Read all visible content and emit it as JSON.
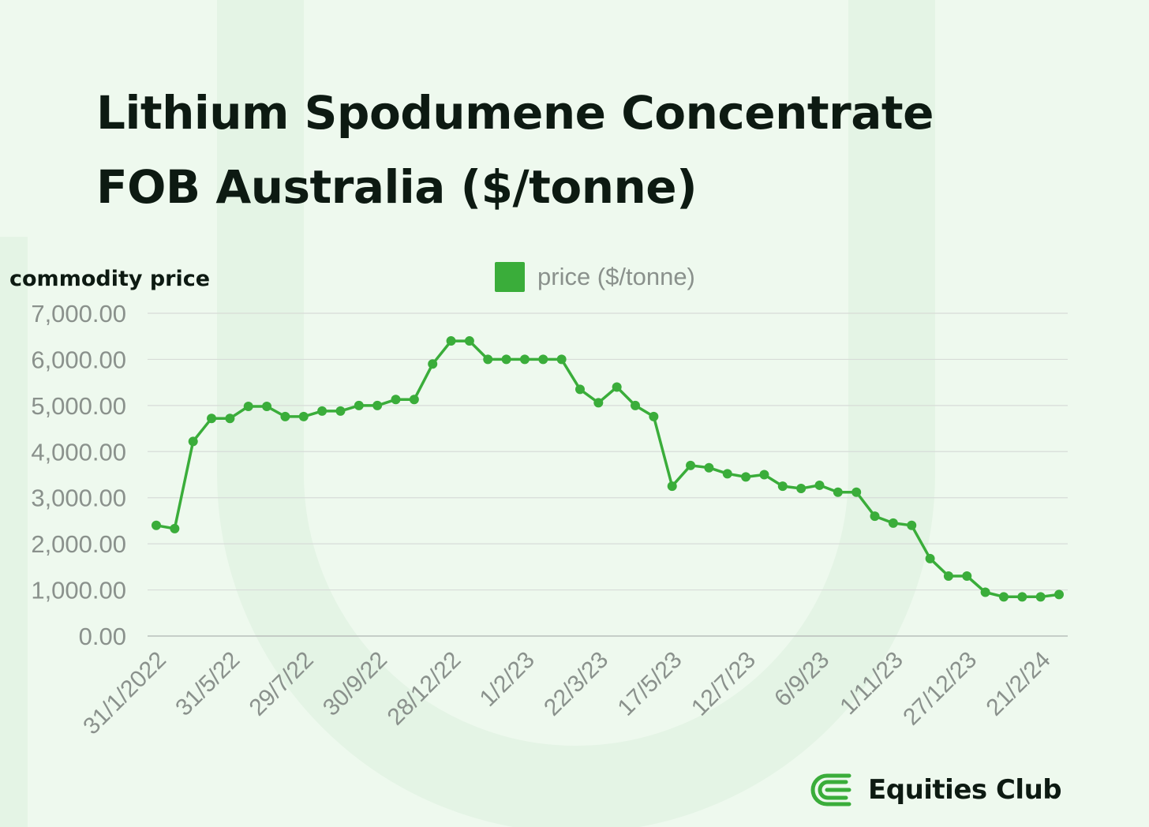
{
  "colors": {
    "background": "#eef9ee",
    "line": "#3aad3a",
    "grid": "#d7dcd8",
    "tick_text": "#8a918c",
    "title": "#0d1a12",
    "brand_green": "#3aad3a"
  },
  "brand": {
    "name": "Equities Club",
    "logo_icon": "equities-club-logo-icon"
  },
  "chart_data": {
    "type": "line",
    "title": "Lithium Spodumene Concentrate FOB Australia ($/tonne)",
    "title_lines": [
      "Lithium Spodumene Concentrate",
      "FOB Australia ($/tonne)"
    ],
    "ylabel": "commodity price",
    "xlabel": "",
    "ylim": [
      0,
      7000
    ],
    "yticks": [
      0,
      1000,
      2000,
      3000,
      4000,
      5000,
      6000,
      7000
    ],
    "ytick_labels": [
      "0.00",
      "1,000.00",
      "2,000.00",
      "3,000.00",
      "4,000.00",
      "5,000.00",
      "6,000.00",
      "7,000.00"
    ],
    "grid": true,
    "legend_position": "top-center",
    "xtick_labels": [
      "31/1/2022",
      "31/5/22",
      "29/7/22",
      "30/9/22",
      "28/12/22",
      "1/2/23",
      "22/3/23",
      "17/5/23",
      "12/7/23",
      "6/9/23",
      "1/11/23",
      "27/12/23",
      "21/2/24"
    ],
    "xtick_every": 4,
    "series": [
      {
        "name": "price ($/tonne)",
        "values": [
          2400,
          2330,
          4220,
          4720,
          4720,
          4980,
          4980,
          4760,
          4760,
          4880,
          4880,
          5000,
          5000,
          5130,
          5130,
          5900,
          6400,
          6400,
          6000,
          6000,
          6000,
          6000,
          6000,
          5350,
          5060,
          5400,
          5000,
          4760,
          3250,
          3700,
          3650,
          3520,
          3450,
          3500,
          3250,
          3200,
          3270,
          3120,
          3120,
          2600,
          2450,
          2400,
          1680,
          1300,
          1300,
          950,
          850,
          850,
          850,
          900
        ]
      }
    ]
  }
}
